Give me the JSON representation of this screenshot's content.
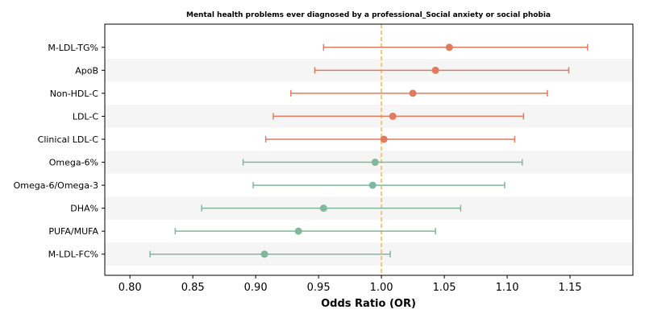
{
  "chart_data": {
    "type": "forest",
    "title": "Mental health problems ever diagnosed by a professional_Social anxiety or social phobia",
    "xlabel": "Odds Ratio (OR)",
    "xlim": [
      0.78,
      1.2
    ],
    "xticks": [
      "0.80",
      "0.85",
      "0.90",
      "0.95",
      "1.00",
      "1.05",
      "1.10",
      "1.15"
    ],
    "reference_line": 1.0,
    "colors": {
      "positive": "#e07b5e",
      "negative": "#7fb89c",
      "reference": "#f2c57c",
      "stripe": "#f5f5f5"
    },
    "rows": [
      {
        "label": "M-LDL-TG%",
        "or": 1.054,
        "lower": 0.954,
        "upper": 1.164,
        "group": "positive"
      },
      {
        "label": "ApoB",
        "or": 1.043,
        "lower": 0.947,
        "upper": 1.149,
        "group": "positive"
      },
      {
        "label": "Non-HDL-C",
        "or": 1.025,
        "lower": 0.928,
        "upper": 1.132,
        "group": "positive"
      },
      {
        "label": "LDL-C",
        "or": 1.009,
        "lower": 0.914,
        "upper": 1.113,
        "group": "positive"
      },
      {
        "label": "Clinical LDL-C",
        "or": 1.002,
        "lower": 0.908,
        "upper": 1.106,
        "group": "positive"
      },
      {
        "label": "Omega-6%",
        "or": 0.995,
        "lower": 0.89,
        "upper": 1.112,
        "group": "negative"
      },
      {
        "label": "Omega-6/Omega-3",
        "or": 0.993,
        "lower": 0.898,
        "upper": 1.098,
        "group": "negative"
      },
      {
        "label": "DHA%",
        "or": 0.954,
        "lower": 0.857,
        "upper": 1.063,
        "group": "negative"
      },
      {
        "label": "PUFA/MUFA",
        "or": 0.934,
        "lower": 0.836,
        "upper": 1.043,
        "group": "negative"
      },
      {
        "label": "M-LDL-FC%",
        "or": 0.907,
        "lower": 0.816,
        "upper": 1.007,
        "group": "negative"
      }
    ]
  }
}
